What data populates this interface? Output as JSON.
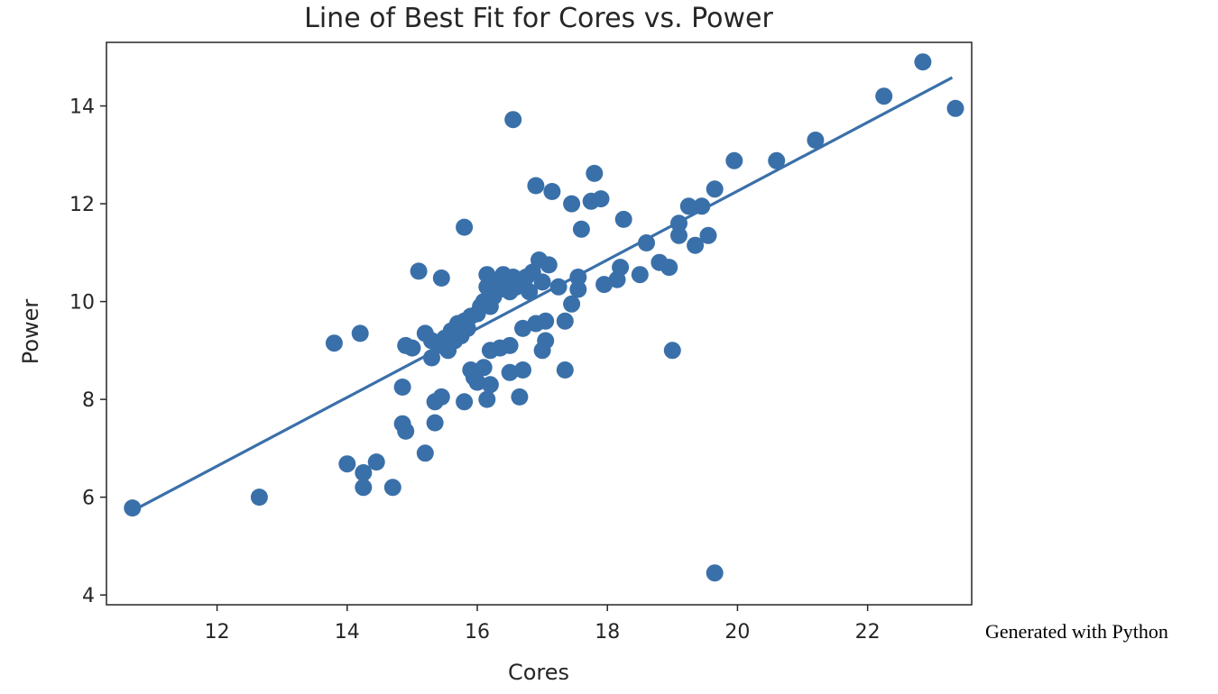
{
  "chart_data": {
    "type": "scatter",
    "title": "Line of Best Fit for Cores vs. Power",
    "xlabel": "Cores",
    "ylabel": "Power",
    "xlim": [
      10.3,
      23.6
    ],
    "ylim": [
      3.8,
      15.3
    ],
    "xticks": [
      12,
      14,
      16,
      18,
      20,
      22
    ],
    "yticks": [
      4,
      6,
      8,
      10,
      12,
      14
    ],
    "grid": false,
    "colors": {
      "marker": "#3a70a9",
      "line": "#3a70a9",
      "axes": "#262626"
    },
    "series": [
      {
        "type": "scatter",
        "points": [
          [
            10.7,
            5.78
          ],
          [
            12.65,
            6.0
          ],
          [
            13.8,
            9.15
          ],
          [
            14.2,
            9.35
          ],
          [
            14.0,
            6.68
          ],
          [
            14.25,
            6.5
          ],
          [
            14.25,
            6.2
          ],
          [
            14.45,
            6.72
          ],
          [
            14.7,
            6.2
          ],
          [
            14.85,
            8.25
          ],
          [
            14.85,
            7.5
          ],
          [
            14.9,
            7.35
          ],
          [
            14.9,
            9.1
          ],
          [
            15.0,
            9.05
          ],
          [
            15.1,
            10.62
          ],
          [
            15.2,
            6.9
          ],
          [
            15.2,
            9.35
          ],
          [
            15.3,
            9.2
          ],
          [
            15.3,
            8.85
          ],
          [
            15.35,
            7.95
          ],
          [
            15.35,
            7.52
          ],
          [
            15.4,
            9.1
          ],
          [
            15.45,
            10.48
          ],
          [
            15.45,
            8.05
          ],
          [
            15.5,
            9.25
          ],
          [
            15.55,
            9.0
          ],
          [
            15.6,
            9.4
          ],
          [
            15.65,
            9.2
          ],
          [
            15.7,
            9.55
          ],
          [
            15.75,
            9.3
          ],
          [
            15.8,
            9.6
          ],
          [
            15.8,
            11.52
          ],
          [
            15.8,
            7.95
          ],
          [
            15.85,
            9.45
          ],
          [
            15.9,
            9.7
          ],
          [
            15.9,
            8.6
          ],
          [
            15.95,
            8.45
          ],
          [
            16.0,
            9.75
          ],
          [
            16.0,
            8.35
          ],
          [
            16.05,
            9.9
          ],
          [
            16.1,
            10.0
          ],
          [
            16.1,
            8.65
          ],
          [
            16.15,
            10.3
          ],
          [
            16.15,
            8.0
          ],
          [
            16.15,
            10.55
          ],
          [
            16.2,
            9.9
          ],
          [
            16.2,
            8.3
          ],
          [
            16.25,
            10.1
          ],
          [
            16.2,
            9.0
          ],
          [
            16.3,
            10.4
          ],
          [
            16.35,
            10.25
          ],
          [
            16.4,
            10.55
          ],
          [
            16.35,
            9.05
          ],
          [
            16.45,
            10.35
          ],
          [
            16.5,
            10.2
          ],
          [
            16.5,
            8.55
          ],
          [
            16.55,
            13.72
          ],
          [
            16.55,
            10.5
          ],
          [
            16.5,
            9.1
          ],
          [
            16.6,
            10.3
          ],
          [
            16.65,
            10.45
          ],
          [
            16.65,
            8.05
          ],
          [
            16.7,
            8.6
          ],
          [
            16.7,
            9.45
          ],
          [
            16.75,
            10.5
          ],
          [
            16.8,
            10.2
          ],
          [
            16.85,
            10.6
          ],
          [
            16.9,
            12.37
          ],
          [
            16.9,
            9.55
          ],
          [
            16.95,
            10.85
          ],
          [
            17.0,
            10.4
          ],
          [
            17.0,
            9.0
          ],
          [
            17.05,
            9.6
          ],
          [
            17.05,
            9.2
          ],
          [
            17.1,
            10.75
          ],
          [
            17.15,
            12.25
          ],
          [
            17.25,
            10.3
          ],
          [
            17.35,
            9.6
          ],
          [
            17.35,
            8.6
          ],
          [
            17.45,
            12.0
          ],
          [
            17.45,
            9.95
          ],
          [
            17.55,
            10.5
          ],
          [
            17.55,
            10.25
          ],
          [
            17.6,
            11.48
          ],
          [
            17.75,
            12.05
          ],
          [
            17.8,
            12.62
          ],
          [
            17.9,
            12.1
          ],
          [
            17.95,
            10.35
          ],
          [
            18.15,
            10.45
          ],
          [
            18.2,
            10.7
          ],
          [
            18.25,
            11.68
          ],
          [
            18.5,
            10.55
          ],
          [
            18.6,
            11.2
          ],
          [
            18.8,
            10.8
          ],
          [
            18.95,
            10.7
          ],
          [
            19.0,
            9.0
          ],
          [
            19.1,
            11.35
          ],
          [
            19.1,
            11.6
          ],
          [
            19.25,
            11.95
          ],
          [
            19.35,
            11.15
          ],
          [
            19.45,
            11.95
          ],
          [
            19.55,
            11.35
          ],
          [
            19.65,
            12.3
          ],
          [
            19.65,
            4.45
          ],
          [
            19.95,
            12.88
          ],
          [
            20.6,
            12.88
          ],
          [
            21.2,
            13.3
          ],
          [
            22.25,
            14.2
          ],
          [
            22.85,
            14.9
          ],
          [
            23.35,
            13.95
          ]
        ]
      },
      {
        "type": "line",
        "x": [
          10.7,
          23.3
        ],
        "y": [
          5.72,
          14.58
        ]
      }
    ]
  },
  "caption": "Generated with Python"
}
